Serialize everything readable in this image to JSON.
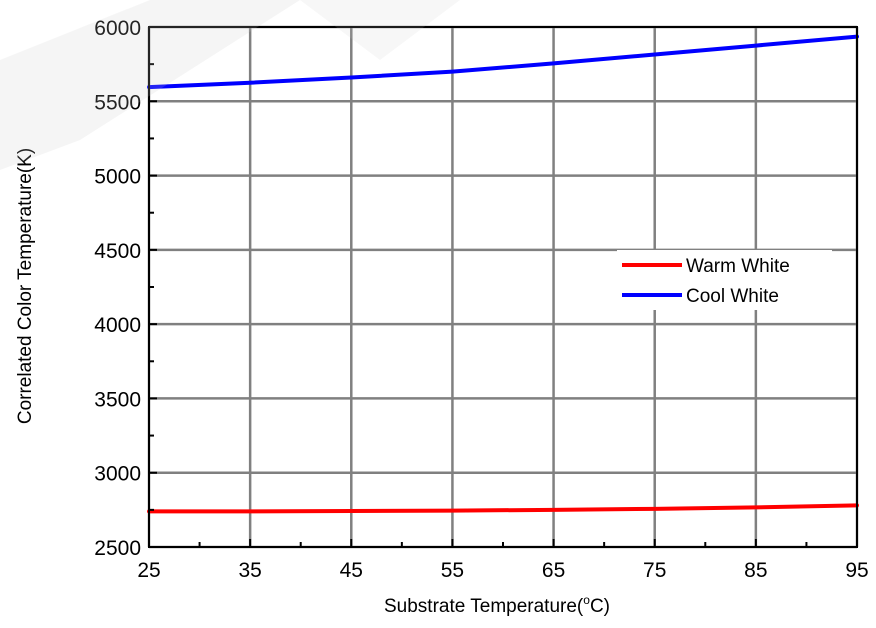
{
  "chart_data": {
    "type": "line",
    "title": "",
    "xlabel": "Substrate Temperature(",
    "xlabel_sup": "o",
    "xlabel_end": "C)",
    "ylabel": "Correlated Color Temperature(K)",
    "xlim": [
      25,
      95
    ],
    "ylim": [
      2500,
      6000
    ],
    "x_ticks": [
      25,
      35,
      45,
      55,
      65,
      75,
      85,
      95
    ],
    "y_ticks": [
      2500,
      3000,
      3500,
      4000,
      4500,
      5000,
      5500,
      6000
    ],
    "x_minor_step": 5,
    "y_minor_step": 250,
    "grid": true,
    "legend_position": "right-center",
    "x": [
      25,
      35,
      45,
      55,
      65,
      75,
      85,
      95
    ],
    "series": [
      {
        "name": "Warm White",
        "color": "#ff0000",
        "values": [
          2740,
          2740,
          2742,
          2745,
          2750,
          2757,
          2767,
          2780
        ]
      },
      {
        "name": "Cool White",
        "color": "#0000ff",
        "values": [
          5595,
          5625,
          5660,
          5700,
          5755,
          5815,
          5875,
          5935
        ]
      }
    ]
  }
}
